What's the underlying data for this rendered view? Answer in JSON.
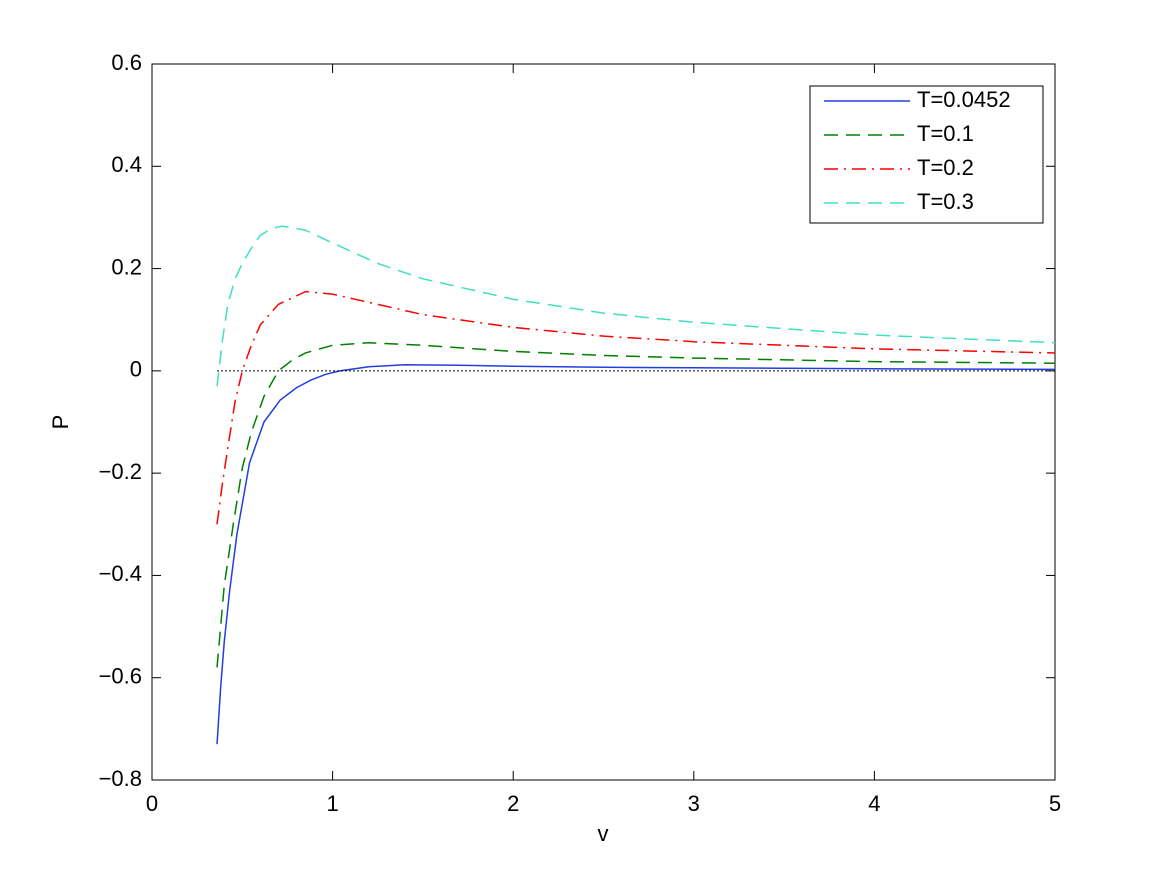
{
  "chart_data": {
    "type": "line",
    "x_label": "v",
    "y_label": "P",
    "xlim": [
      0,
      5
    ],
    "ylim": [
      -0.8,
      0.6
    ],
    "xticks": [
      0,
      1,
      2,
      3,
      4,
      5
    ],
    "yticks": [
      {
        "value": -0.8,
        "label": "−0.8"
      },
      {
        "value": -0.6,
        "label": "−0.6"
      },
      {
        "value": -0.4,
        "label": "−0.4"
      },
      {
        "value": -0.2,
        "label": "−0.2"
      },
      0,
      0.2,
      0.4,
      0.6
    ],
    "legend": "upper right",
    "series": [
      {
        "name": "T=0.0452",
        "color": "#1f3fe0",
        "style": "solid",
        "x": [
          0.36,
          0.38,
          0.4,
          0.43,
          0.47,
          0.54,
          0.62,
          0.71,
          0.8,
          0.88,
          0.96,
          1.04,
          1.2,
          1.4,
          1.7,
          2,
          2.5,
          3,
          4,
          5
        ],
        "values": [
          -0.73,
          -0.62,
          -0.53,
          -0.43,
          -0.32,
          -0.18,
          -0.1,
          -0.057,
          -0.033,
          -0.018,
          -0.007,
          0.0,
          0.008,
          0.012,
          0.011,
          0.009,
          0.007,
          0.006,
          0.004,
          0.003
        ]
      },
      {
        "name": "T=0.1",
        "color": "#008000",
        "style": "dashed",
        "x": [
          0.36,
          0.4,
          0.45,
          0.5,
          0.55,
          0.62,
          0.7,
          0.78,
          0.85,
          1.0,
          1.2,
          1.5,
          2,
          2.5,
          3,
          4,
          5
        ],
        "values": [
          -0.58,
          -0.42,
          -0.3,
          -0.19,
          -0.12,
          -0.05,
          0.0,
          0.022,
          0.035,
          0.05,
          0.055,
          0.05,
          0.038,
          0.03,
          0.025,
          0.018,
          0.015
        ]
      },
      {
        "name": "T=0.2",
        "color": "#ff0000",
        "style": "dashdot",
        "x": [
          0.36,
          0.39,
          0.42,
          0.46,
          0.5,
          0.55,
          0.6,
          0.7,
          0.85,
          1.0,
          1.25,
          1.5,
          2,
          2.5,
          3,
          4,
          5
        ],
        "values": [
          -0.3,
          -0.22,
          -0.15,
          -0.06,
          0.0,
          0.05,
          0.09,
          0.13,
          0.155,
          0.15,
          0.13,
          0.11,
          0.085,
          0.068,
          0.057,
          0.043,
          0.035
        ]
      },
      {
        "name": "T=0.3",
        "color": "#40e0c0",
        "style": "dashed",
        "x": [
          0.36,
          0.39,
          0.42,
          0.46,
          0.5,
          0.55,
          0.6,
          0.66,
          0.72,
          0.85,
          1.0,
          1.25,
          1.5,
          2,
          2.5,
          3,
          4,
          5
        ],
        "values": [
          -0.03,
          0.06,
          0.13,
          0.18,
          0.21,
          0.24,
          0.265,
          0.278,
          0.283,
          0.275,
          0.25,
          0.21,
          0.18,
          0.14,
          0.113,
          0.095,
          0.07,
          0.055
        ]
      },
      {
        "color": "#000000",
        "style": "dotted",
        "x": [
          0.36,
          5
        ],
        "values": [
          0,
          0
        ]
      }
    ]
  }
}
